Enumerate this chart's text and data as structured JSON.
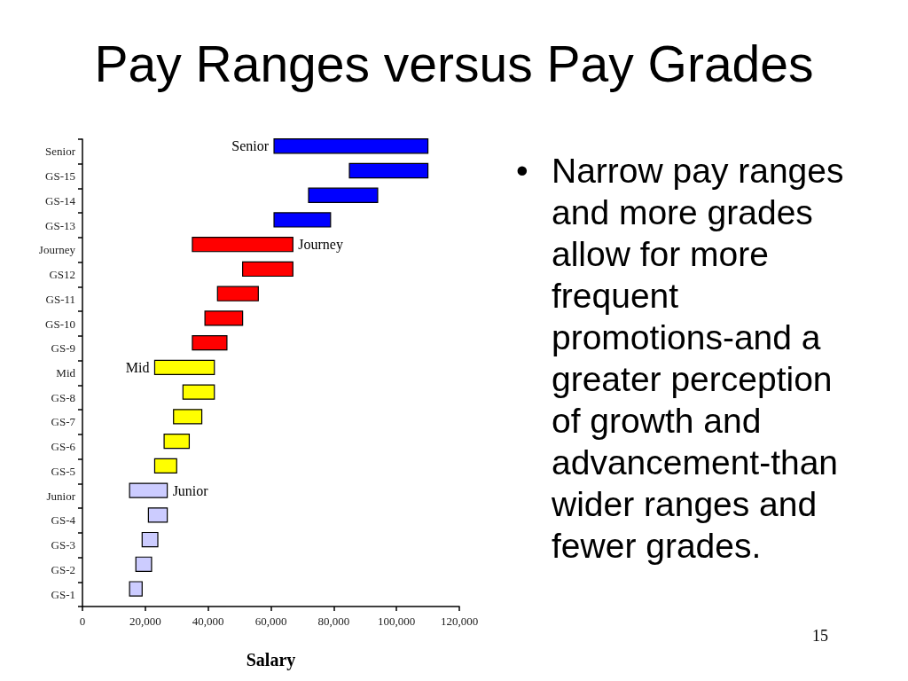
{
  "chart_data": {
    "type": "bar",
    "orientation": "horizontal",
    "title": "Pay Ranges versus Pay Grades",
    "xlabel": "Salary",
    "categories": [
      "Senior",
      "GS-15",
      "GS-14",
      "GS-13",
      "Journey",
      "GS12",
      "GS-11",
      "GS-10",
      "GS-9",
      "Mid",
      "GS-8",
      "GS-7",
      "GS-6",
      "GS-5",
      "Junior",
      "GS-4",
      "GS-3",
      "GS-2",
      "GS-1"
    ],
    "base": [
      61000,
      85000,
      72000,
      61000,
      35000,
      51000,
      43000,
      39000,
      35000,
      23000,
      32000,
      29000,
      26000,
      23000,
      15000,
      21000,
      19000,
      17000,
      15000
    ],
    "values": [
      49000,
      25000,
      22000,
      18000,
      32000,
      16000,
      13000,
      12000,
      11000,
      19000,
      10000,
      9000,
      8000,
      7000,
      12000,
      6000,
      5000,
      5000,
      4000
    ],
    "colors": [
      "#0000ff",
      "#0000ff",
      "#0000ff",
      "#0000ff",
      "#ff0000",
      "#ff0000",
      "#ff0000",
      "#ff0000",
      "#ff0000",
      "#ffff00",
      "#ffff00",
      "#ffff00",
      "#ffff00",
      "#ffff00",
      "#ccccff",
      "#ccccff",
      "#ccccff",
      "#ccccff",
      "#ccccff"
    ],
    "xlim": [
      0,
      120000
    ],
    "xticks": [
      0,
      {
        "value": 20000,
        "label": "20,000"
      },
      {
        "value": 40000,
        "label": "40,000"
      },
      {
        "value": 60000,
        "label": "60,000"
      },
      {
        "value": 80000,
        "label": "80,000"
      },
      {
        "value": 100000,
        "label": "100,000"
      },
      {
        "value": 120000,
        "label": "120,000"
      }
    ],
    "annotations": [
      {
        "text": "Senior",
        "x": 61000,
        "y": "Senior"
      },
      {
        "text": "Journey",
        "x": 67000,
        "y": "Journey"
      },
      {
        "text": "Mid",
        "x": 23000,
        "y": "Mid"
      },
      {
        "text": "Junior",
        "x": 27000,
        "y": "Junior"
      },
      "• Narrow pay ranges and more grades allow for more frequent promotions-and a greater perception of growth and advancement-than wider ranges and fewer grades.",
      "15"
    ]
  }
}
